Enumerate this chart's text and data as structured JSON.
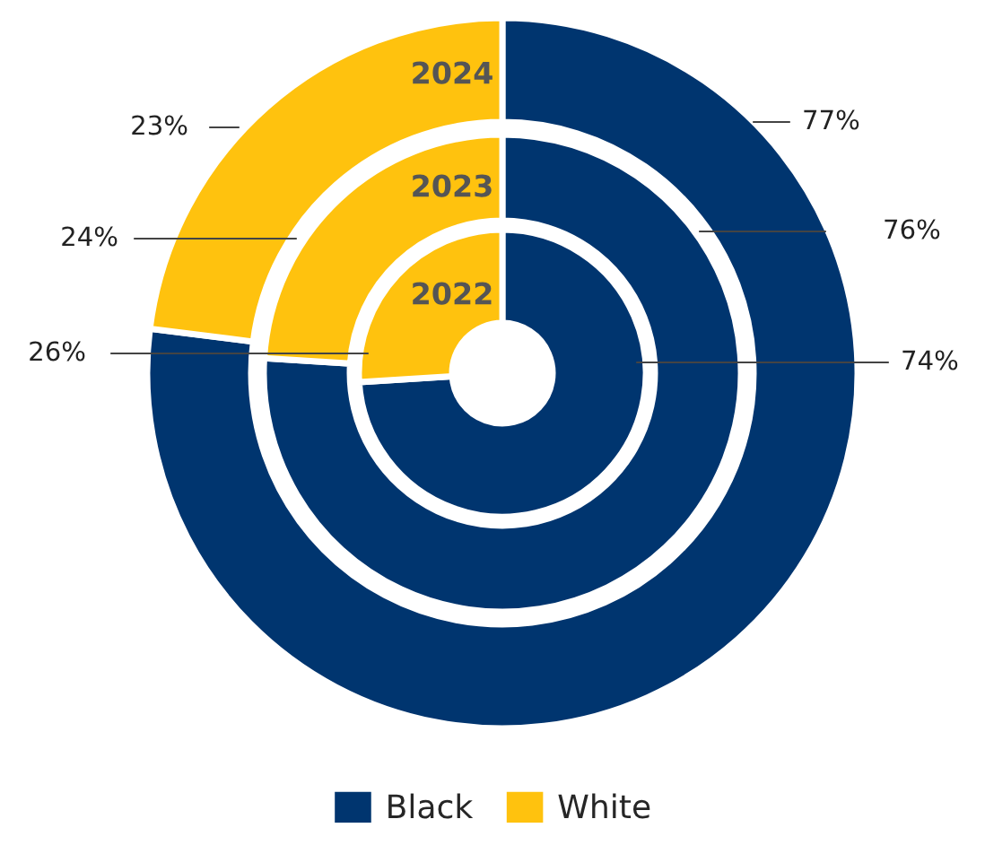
{
  "chart_data": {
    "type": "donut",
    "categories": [
      "Black",
      "White"
    ],
    "colors": [
      "#00356f",
      "#ffc20e"
    ],
    "series": [
      {
        "name": "2022",
        "values": [
          74,
          26
        ],
        "value_labels": [
          "74%",
          "26%"
        ]
      },
      {
        "name": "2023",
        "values": [
          76,
          24
        ],
        "value_labels": [
          "76%",
          "24%"
        ]
      },
      {
        "name": "2024",
        "values": [
          77,
          23
        ],
        "value_labels": [
          "77%",
          "23%"
        ]
      }
    ],
    "legend": "bottom"
  }
}
